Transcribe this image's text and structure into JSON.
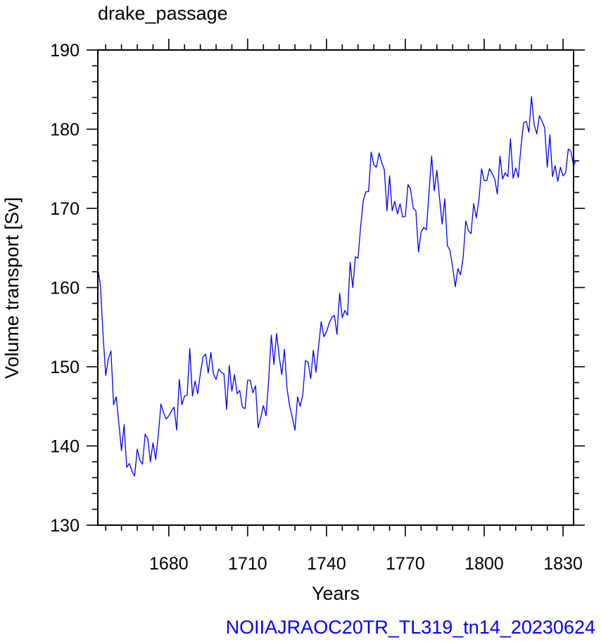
{
  "chart_data": {
    "type": "line",
    "title": "drake_passage",
    "xlabel": "Years",
    "ylabel": "Volume transport [Sv]",
    "footer": "NOIIAJRAOC20TR_TL319_tn14_20230624",
    "xlim": [
      1653,
      1834
    ],
    "ylim": [
      130,
      190
    ],
    "x_ticks": [
      1680,
      1710,
      1740,
      1770,
      1800,
      1830
    ],
    "x_tick_labels": [
      "1680",
      "1710",
      "1740",
      "1770",
      "1800",
      "1830"
    ],
    "y_ticks": [
      130,
      140,
      150,
      160,
      170,
      180,
      190
    ],
    "y_tick_labels": [
      "130",
      "140",
      "150",
      "160",
      "170",
      "180",
      "190"
    ],
    "grid": false,
    "series": [
      {
        "color": "#0000ff",
        "x_start": 1653,
        "x_step": 1,
        "values": [
          162.5,
          160.2,
          154.0,
          148.9,
          151.0,
          152.0,
          145.2,
          146.2,
          142.9,
          139.4,
          142.7,
          137.3,
          137.8,
          136.8,
          136.2,
          139.6,
          138.2,
          137.7,
          141.5,
          140.9,
          138.0,
          140.4,
          138.3,
          141.3,
          145.3,
          144.2,
          143.4,
          143.8,
          144.4,
          144.9,
          142.0,
          148.4,
          145.2,
          146.3,
          146.4,
          152.3,
          146.3,
          148.2,
          146.6,
          149.1,
          151.2,
          151.6,
          149.2,
          151.8,
          149.1,
          148.4,
          149.7,
          149.3,
          149.1,
          144.6,
          150.2,
          146.9,
          149.0,
          146.6,
          147.0,
          144.9,
          144.7,
          148.3,
          148.3,
          146.7,
          147.6,
          142.3,
          143.6,
          145.1,
          143.8,
          148.3,
          154.0,
          150.3,
          154.2,
          151.3,
          149.0,
          152.2,
          147.2,
          145.0,
          143.6,
          142.0,
          146.2,
          145.0,
          146.5,
          150.8,
          150.6,
          148.5,
          152.1,
          149.3,
          152.6,
          155.7,
          153.8,
          154.4,
          155.5,
          156.2,
          156.5,
          154.1,
          159.3,
          156.2,
          157.1,
          156.5,
          163.2,
          160.0,
          163.9,
          163.7,
          167.7,
          171.0,
          172.1,
          172.1,
          177.1,
          175.5,
          175.2,
          177.0,
          175.8,
          174.9,
          169.7,
          174.1,
          169.7,
          170.9,
          169.3,
          170.6,
          168.9,
          169.0,
          173.0,
          172.4,
          170.0,
          169.7,
          164.5,
          167.0,
          167.6,
          167.3,
          172.0,
          176.6,
          172.2,
          174.8,
          171.3,
          168.0,
          171.2,
          165.3,
          164.7,
          162.6,
          160.1,
          162.4,
          161.6,
          163.8,
          168.4,
          167.2,
          166.8,
          170.6,
          168.8,
          171.1,
          175.0,
          173.5,
          173.5,
          175.0,
          174.4,
          173.7,
          171.8,
          176.6,
          173.7,
          174.5,
          174.0,
          178.8,
          173.8,
          175.1,
          173.9,
          177.8,
          180.8,
          181.0,
          179.6,
          184.1,
          180.6,
          179.4,
          181.7,
          181.0,
          180.2,
          175.2,
          179.3,
          174.0,
          175.4,
          173.4,
          175.2,
          174.1,
          174.5,
          177.5,
          177.2,
          175.4,
          176.1
        ]
      }
    ]
  }
}
